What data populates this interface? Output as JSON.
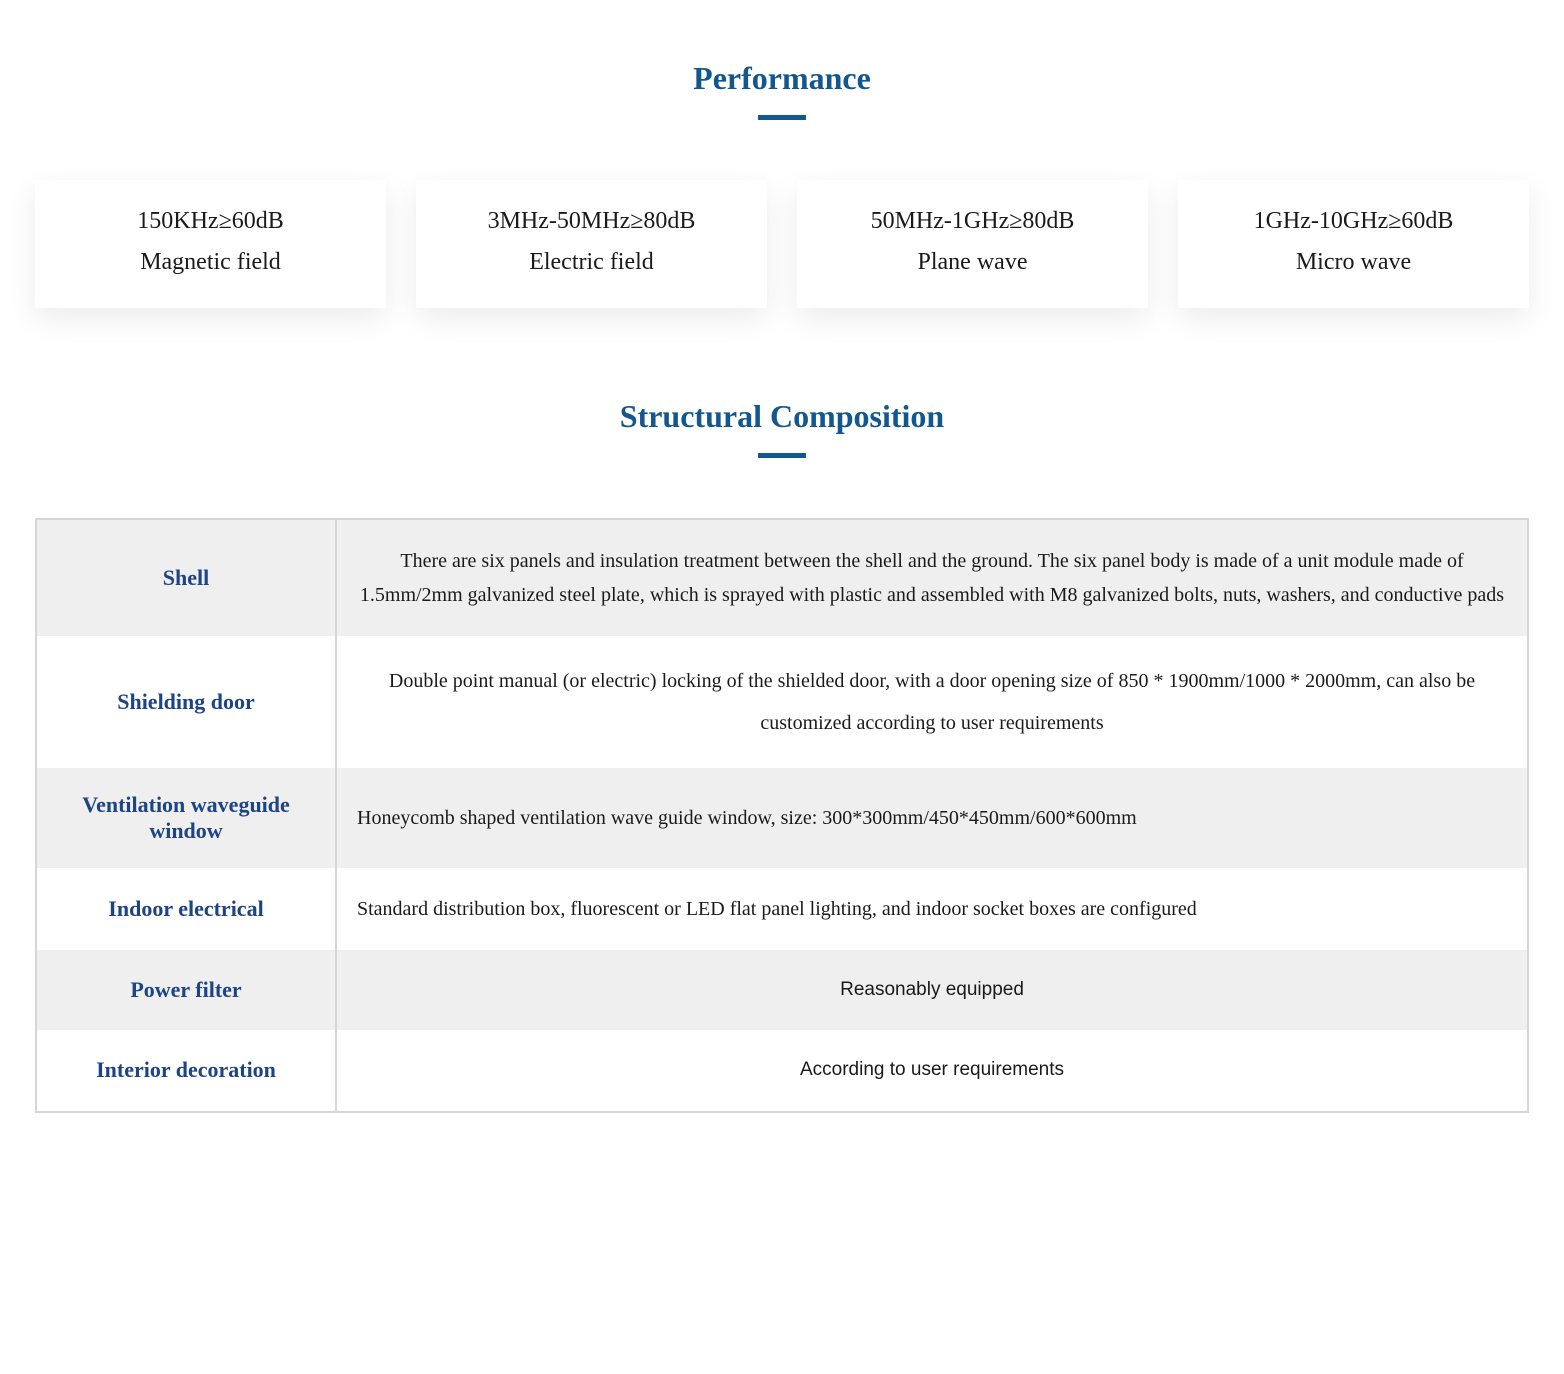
{
  "performance": {
    "title": "Performance",
    "title_color": "#13578f",
    "underline_color": "#13578f",
    "cards": [
      {
        "value": "150KHz≥60dB",
        "label": "Magnetic field"
      },
      {
        "value": "3MHz-50MHz≥80dB",
        "label": "Electric field"
      },
      {
        "value": "50MHz-1GHz≥80dB",
        "label": "Plane wave"
      },
      {
        "value": "1GHz-10GHz≥60dB",
        "label": "Micro wave"
      }
    ],
    "card_background": "#ffffff",
    "card_shadow": "0 10px 30px rgba(0,0,0,0.08)",
    "value_fontsize": 24,
    "label_fontsize": 24,
    "text_color": "#1a1a1a"
  },
  "structural": {
    "title": "Structural Composition",
    "title_color": "#13578f",
    "label_color": "#1d4484",
    "label_fontsize": 22,
    "desc_fontsize": 20,
    "border_color": "#d6d6d6",
    "row_alt_bg": "#efefef",
    "row_bg": "#ffffff",
    "rows": [
      {
        "label": "Shell",
        "desc": "There are six panels and insulation treatment between the shell and the ground. The six panel body is made of a unit module made of 1.5mm/2mm galvanized steel plate, which is sprayed with plastic and assembled with M8 galvanized bolts, nuts, washers, and conductive pads",
        "align": "serif-center"
      },
      {
        "label": "Shielding door",
        "desc": "Double point manual (or electric) locking of the shielded door, with a door opening size of 850 * 1900mm/1000 * 2000mm, can also be customized according to user requirements",
        "align": "serif-center"
      },
      {
        "label": "Ventilation waveguide window",
        "desc": "Honeycomb shaped ventilation wave guide window, size: 300*300mm/450*450mm/600*600mm",
        "align": "left"
      },
      {
        "label": "Indoor electrical",
        "desc": "Standard distribution box, fluorescent or LED flat panel lighting, and indoor socket boxes are configured",
        "align": "left"
      },
      {
        "label": "Power filter",
        "desc": "Reasonably equipped",
        "align": "center"
      },
      {
        "label": "Interior decoration",
        "desc": "According to user requirements",
        "align": "center"
      }
    ]
  }
}
